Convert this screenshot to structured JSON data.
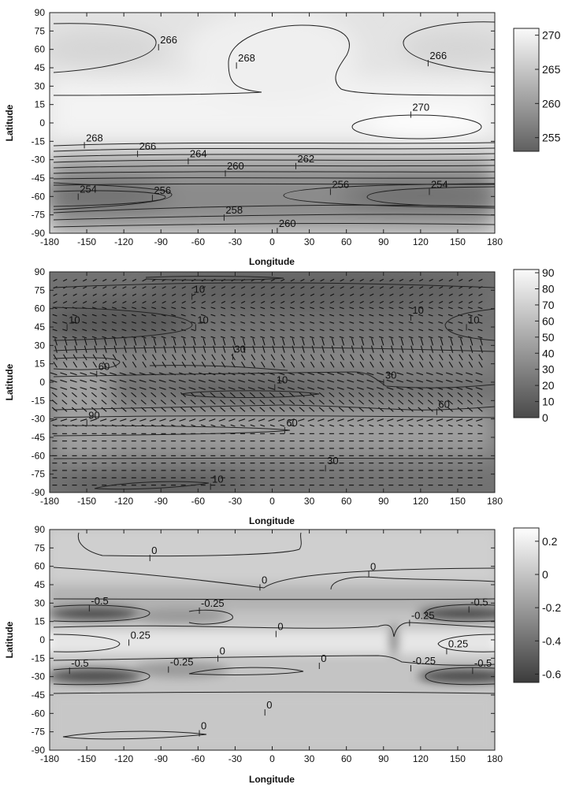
{
  "chart_data": [
    {
      "type": "heatmap",
      "xlabel": "Longitude",
      "ylabel": "Latitude",
      "xlim": [
        -180,
        180
      ],
      "ylim": [
        -90,
        90
      ],
      "xticks": [
        "-180",
        "-150",
        "-120",
        "-90",
        "-60",
        "-30",
        "0",
        "30",
        "60",
        "90",
        "120",
        "150",
        "180"
      ],
      "yticks": [
        "90",
        "75",
        "60",
        "45",
        "30",
        "15",
        "0",
        "-15",
        "-30",
        "-45",
        "-60",
        "-75",
        "-90"
      ],
      "colorbar": {
        "min": 253,
        "max": 271,
        "ticks": [
          "270",
          "265",
          "260",
          "255"
        ],
        "tick_values": [
          270,
          265,
          260,
          255
        ]
      },
      "contour_labels": [
        {
          "text": "266",
          "lon": -90,
          "lat": 65
        },
        {
          "text": "268",
          "lon": -27,
          "lat": 50
        },
        {
          "text": "266",
          "lon": 128,
          "lat": 52
        },
        {
          "text": "270",
          "lon": 114,
          "lat": 10
        },
        {
          "text": "268",
          "lon": -150,
          "lat": -15
        },
        {
          "text": "266",
          "lon": -107,
          "lat": -22
        },
        {
          "text": "264",
          "lon": -66,
          "lat": -28
        },
        {
          "text": "262",
          "lon": 21,
          "lat": -32
        },
        {
          "text": "260",
          "lon": -36,
          "lat": -38
        },
        {
          "text": "256",
          "lon": 49,
          "lat": -53
        },
        {
          "text": "254",
          "lon": 129,
          "lat": -53
        },
        {
          "text": "254",
          "lon": -155,
          "lat": -57
        },
        {
          "text": "256",
          "lon": -95,
          "lat": -58
        },
        {
          "text": "258",
          "lon": -37,
          "lat": -74
        },
        {
          "text": "260",
          "lon": 6,
          "lat": -85
        }
      ]
    },
    {
      "type": "heatmap",
      "xlabel": "Longitude",
      "ylabel": "Latitude",
      "xlim": [
        -180,
        180
      ],
      "ylim": [
        -90,
        90
      ],
      "xticks": [
        "-180",
        "-150",
        "-120",
        "-90",
        "-60",
        "-30",
        "0",
        "30",
        "60",
        "90",
        "120",
        "150",
        "180"
      ],
      "yticks": [
        "90",
        "75",
        "60",
        "45",
        "30",
        "15",
        "0",
        "-15",
        "-30",
        "-45",
        "-60",
        "-75",
        "-90"
      ],
      "colorbar": {
        "min": 0,
        "max": 92,
        "ticks": [
          "90",
          "80",
          "70",
          "60",
          "50",
          "40",
          "30",
          "20",
          "10",
          "0"
        ],
        "tick_values": [
          90,
          80,
          70,
          60,
          50,
          40,
          30,
          20,
          10,
          0
        ]
      },
      "contour_labels": [
        {
          "text": "10",
          "lon": -63,
          "lat": 73
        },
        {
          "text": "10",
          "lon": 114,
          "lat": 56
        },
        {
          "text": "10",
          "lon": -164,
          "lat": 48
        },
        {
          "text": "10",
          "lon": -60,
          "lat": 48
        },
        {
          "text": "10",
          "lon": 159,
          "lat": 48
        },
        {
          "text": "30",
          "lon": -30,
          "lat": 24
        },
        {
          "text": "60",
          "lon": -140,
          "lat": 10
        },
        {
          "text": "30",
          "lon": 92,
          "lat": 3
        },
        {
          "text": "10",
          "lon": 4,
          "lat": -1
        },
        {
          "text": "60",
          "lon": 135,
          "lat": -21
        },
        {
          "text": "90",
          "lon": -148,
          "lat": -30
        },
        {
          "text": "60",
          "lon": 12,
          "lat": -36
        },
        {
          "text": "30",
          "lon": 45,
          "lat": -67
        },
        {
          "text": "10",
          "lon": -48,
          "lat": -82
        }
      ]
    },
    {
      "type": "heatmap",
      "xlabel": "Longitude",
      "ylabel": "Latitude",
      "xlim": [
        -180,
        180
      ],
      "ylim": [
        -90,
        90
      ],
      "xticks": [
        "-180",
        "-150",
        "-120",
        "-90",
        "-60",
        "-30",
        "0",
        "30",
        "60",
        "90",
        "120",
        "150",
        "180"
      ],
      "yticks": [
        "90",
        "75",
        "60",
        "45",
        "30",
        "15",
        "0",
        "-15",
        "-30",
        "-45",
        "-60",
        "-75",
        "-90"
      ],
      "colorbar": {
        "min": -0.65,
        "max": 0.28,
        "ticks": [
          "0.2",
          "0",
          "-0.2",
          "-0.4",
          "-0.6"
        ],
        "tick_values": [
          0.2,
          0,
          -0.2,
          -0.4,
          -0.6
        ]
      },
      "contour_labels": [
        {
          "text": "0",
          "lon": -97,
          "lat": 70
        },
        {
          "text": "0",
          "lon": 80,
          "lat": 57
        },
        {
          "text": "0",
          "lon": -8,
          "lat": 46
        },
        {
          "text": "-0.5",
          "lon": -146,
          "lat": 29
        },
        {
          "text": "-0.25",
          "lon": -57,
          "lat": 27
        },
        {
          "text": "-0.5",
          "lon": 161,
          "lat": 28
        },
        {
          "text": "-0.25",
          "lon": 113,
          "lat": 17
        },
        {
          "text": "0",
          "lon": 5,
          "lat": 8
        },
        {
          "text": "0.25",
          "lon": -114,
          "lat": 1
        },
        {
          "text": "0.25",
          "lon": 143,
          "lat": -6
        },
        {
          "text": "0",
          "lon": -42,
          "lat": -12
        },
        {
          "text": "0",
          "lon": 40,
          "lat": -18
        },
        {
          "text": "-0.5",
          "lon": -162,
          "lat": -22
        },
        {
          "text": "-0.25",
          "lon": -82,
          "lat": -21
        },
        {
          "text": "-0.25",
          "lon": 114,
          "lat": -20
        },
        {
          "text": "-0.5",
          "lon": 164,
          "lat": -22
        },
        {
          "text": "0",
          "lon": -4,
          "lat": -56
        },
        {
          "text": "0",
          "lon": -57,
          "lat": -73
        }
      ]
    }
  ]
}
